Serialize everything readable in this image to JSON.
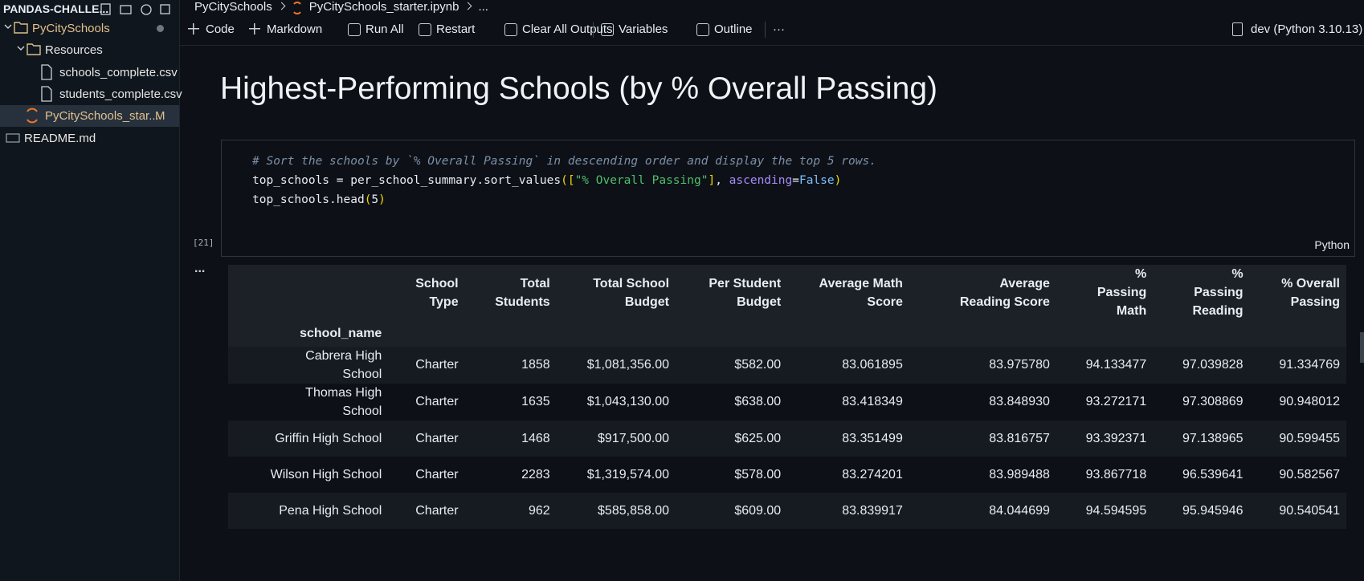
{
  "explorer": {
    "title": "PANDAS-CHALLE...",
    "items": [
      {
        "label": "PyCitySchools",
        "level": 0,
        "kind": "folder",
        "color": "#e2c08d"
      },
      {
        "label": "Resources",
        "level": 1,
        "kind": "folder",
        "color": "#e6e6e6"
      },
      {
        "label": "schools_complete.csv",
        "level": 2,
        "kind": "file",
        "color": "#e6e6e6"
      },
      {
        "label": "students_complete.csv",
        "level": 2,
        "kind": "file",
        "color": "#e6e6e6"
      },
      {
        "label": "PyCitySchools_star...",
        "level": 1,
        "kind": "notebook",
        "color": "#e2c08d",
        "badge": "M",
        "selected": true
      },
      {
        "label": "README.md",
        "level": 0,
        "kind": "markdown",
        "color": "#e6e6e6"
      }
    ]
  },
  "breadcrumb": [
    "PyCitySchools",
    "PyCitySchools_starter.ipynb",
    "..."
  ],
  "toolbar": [
    "Code",
    "Markdown",
    "Run All",
    "Restart",
    "Clear All Outputs",
    "Variables",
    "Outline",
    "···"
  ],
  "kernel": "dev (Python 3.10.13)",
  "heading": "Highest-Performing Schools (by % Overall Passing)",
  "code": {
    "lines": [
      [
        {
          "text": "# Sort the schools by `% Overall Passing` in descending order and display the top 5 rows.",
          "color": "#7d8fa8"
        }
      ],
      [
        {
          "text": "top_schools = per_school_summary.sort_values",
          "color": "#e6edf3"
        },
        {
          "text": "([",
          "color": "#f1d700"
        },
        {
          "text": "\"% Overall Passing\"",
          "color": "#4fbf6a"
        },
        {
          "text": "]",
          "color": "#f1d700"
        },
        {
          "text": ", ",
          "color": "#e6edf3"
        },
        {
          "text": "ascending",
          "color": "#a78bfa"
        },
        {
          "text": "=",
          "color": "#e6edf3"
        },
        {
          "text": "False",
          "color": "#79c0ff"
        },
        {
          "text": ")",
          "color": "#f1d700"
        }
      ],
      [
        {
          "text": "top_schools.head",
          "color": "#e6edf3"
        },
        {
          "text": "(",
          "color": "#f1d700"
        },
        {
          "text": "5",
          "color": "#e6edf3"
        },
        {
          "text": ")",
          "color": "#f1d700"
        }
      ]
    ],
    "execution_count": "[21]",
    "language": "Python",
    "output_marker": "..."
  },
  "table": {
    "columns": [
      "School Type",
      "Total Students",
      "Total School Budget",
      "Per Student Budget",
      "Average Math Score",
      "Average Reading Score",
      "% Passing Math",
      "% Passing Reading",
      "% Overall Passing"
    ],
    "index_name": "school_name",
    "rows": [
      [
        "Cabrera High School",
        "Charter",
        1858,
        "$1,081,356.00",
        "$582.00",
        "83.061895",
        "83.975780",
        "94.133477",
        "97.039828",
        "91.334769"
      ],
      [
        "Thomas High School",
        "Charter",
        1635,
        "$1,043,130.00",
        "$638.00",
        "83.418349",
        "83.848930",
        "93.272171",
        "97.308869",
        "90.948012"
      ],
      [
        "Griffin High School",
        "Charter",
        1468,
        "$917,500.00",
        "$625.00",
        "83.351499",
        "83.816757",
        "93.392371",
        "97.138965",
        "90.599455"
      ],
      [
        "Wilson High School",
        "Charter",
        2283,
        "$1,319,574.00",
        "$578.00",
        "83.274201",
        "83.989488",
        "93.867718",
        "96.539641",
        "90.582567"
      ],
      [
        "Pena High School",
        "Charter",
        962,
        "$585,858.00",
        "$609.00",
        "83.839917",
        "84.044699",
        "94.594595",
        "95.945946",
        "90.540541"
      ]
    ]
  }
}
